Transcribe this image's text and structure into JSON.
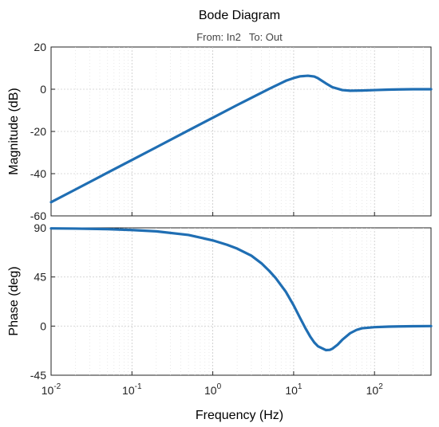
{
  "chart_data": {
    "type": "line",
    "title": "Bode Diagram",
    "subtitle_from": "From: In2",
    "subtitle_to": "To: Out",
    "xlabel": "Frequency  (Hz)",
    "x_scale": "log",
    "xlim": [
      0.01,
      500
    ],
    "x_ticks": [
      {
        "base": "10",
        "exp": "-2"
      },
      {
        "base": "10",
        "exp": "-1"
      },
      {
        "base": "10",
        "exp": "0"
      },
      {
        "base": "10",
        "exp": "1"
      },
      {
        "base": "10",
        "exp": "2"
      }
    ],
    "x_tick_values": [
      0.01,
      0.1,
      1,
      10,
      100
    ],
    "grid": true,
    "line_color": "#1f6eb3",
    "panels": [
      {
        "name": "magnitude",
        "ylabel": "Magnitude (dB)",
        "ylim": [
          -60,
          20
        ],
        "y_ticks": [
          "20",
          "0",
          "-20",
          "-40",
          "-60"
        ],
        "y_tick_values": [
          20,
          0,
          -20,
          -40,
          -60
        ],
        "series": [
          {
            "x": [
              0.01,
              0.02,
              0.05,
              0.1,
              0.2,
              0.5,
              1,
              2,
              5,
              8,
              10,
              12,
              15,
              18,
              20,
              25,
              30,
              40,
              50,
              70,
              100,
              150,
              200,
              300,
              500
            ],
            "y": [
              -53.5,
              -47.5,
              -39.5,
              -33.5,
              -27.5,
              -19.5,
              -13.5,
              -7.5,
              0.2,
              4.0,
              5.3,
              6.1,
              6.4,
              6.0,
              5.2,
              2.8,
              1.0,
              -0.4,
              -0.7,
              -0.6,
              -0.4,
              -0.2,
              -0.1,
              0.0,
              0.0
            ]
          }
        ]
      },
      {
        "name": "phase",
        "ylabel": "Phase (deg)",
        "ylim": [
          -45,
          90
        ],
        "y_ticks": [
          "90",
          "45",
          "0",
          "-45"
        ],
        "y_tick_values": [
          90,
          45,
          0,
          -45
        ],
        "series": [
          {
            "x": [
              0.01,
              0.02,
              0.05,
              0.1,
              0.2,
              0.5,
              1,
              1.5,
              2,
              3,
              4,
              5,
              6,
              8,
              10,
              12,
              14,
              16,
              18,
              20,
              25,
              28,
              30,
              35,
              40,
              50,
              60,
              70,
              100,
              150,
              200,
              300,
              500
            ],
            "y": [
              89.5,
              89.3,
              88.8,
              88.0,
              86.8,
              83.5,
              78.5,
              74.5,
              71.0,
              64.5,
              57.5,
              50.5,
              44.0,
              31.5,
              19.0,
              7.5,
              -2.0,
              -9.5,
              -15.0,
              -18.5,
              -22.0,
              -21.8,
              -20.8,
              -17.0,
              -12.5,
              -6.5,
              -3.5,
              -2.0,
              -1.0,
              -0.5,
              -0.3,
              -0.1,
              0.0
            ]
          }
        ]
      }
    ]
  }
}
